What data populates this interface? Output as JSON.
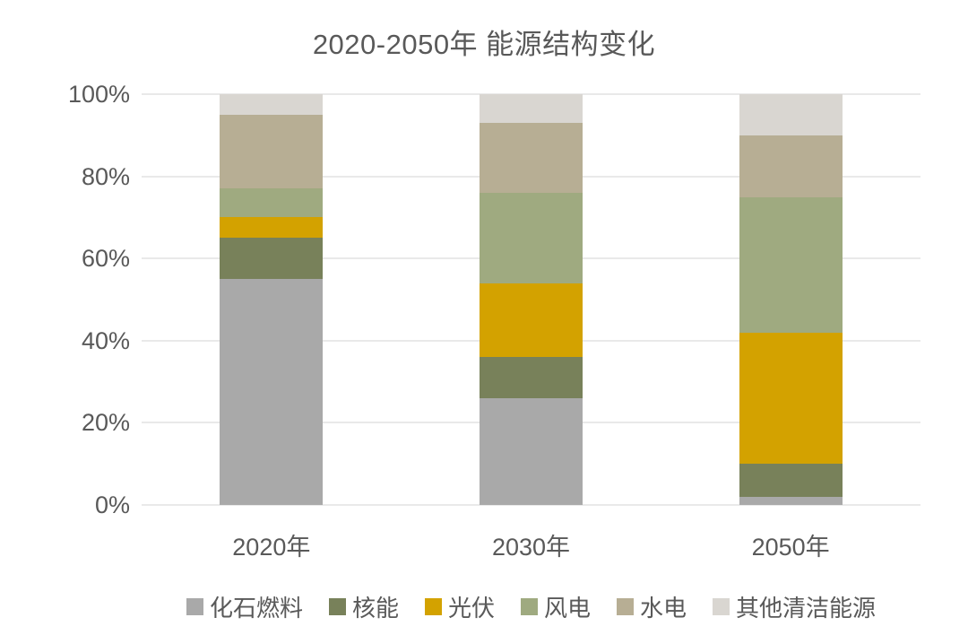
{
  "chart_data": {
    "type": "bar",
    "variant": "stacked-100-percent",
    "title": "2020-2050年 能源结构变化",
    "categories": [
      "2020年",
      "2030年",
      "2050年"
    ],
    "series": [
      {
        "name": "化石燃料",
        "color": "#a9a9a9",
        "values": [
          55,
          26,
          2
        ]
      },
      {
        "name": "核能",
        "color": "#78815a",
        "values": [
          10,
          10,
          8
        ]
      },
      {
        "name": "光伏",
        "color": "#d3a200",
        "values": [
          5,
          18,
          32
        ]
      },
      {
        "name": "风电",
        "color": "#9faa80",
        "values": [
          7,
          22,
          33
        ]
      },
      {
        "name": "水电",
        "color": "#b7ae94",
        "values": [
          18,
          17,
          15
        ]
      },
      {
        "name": "其他清洁能源",
        "color": "#d9d6d1",
        "values": [
          5,
          7,
          10
        ]
      }
    ],
    "y_ticks": [
      "0%",
      "20%",
      "40%",
      "60%",
      "80%",
      "100%"
    ],
    "ylim": [
      0,
      100
    ],
    "xlabel": "",
    "ylabel": "",
    "grid": true,
    "gridline_color": "#e9e9e9",
    "text_color": "#595959",
    "background_color": "#ffffff",
    "legend_position": "bottom"
  }
}
